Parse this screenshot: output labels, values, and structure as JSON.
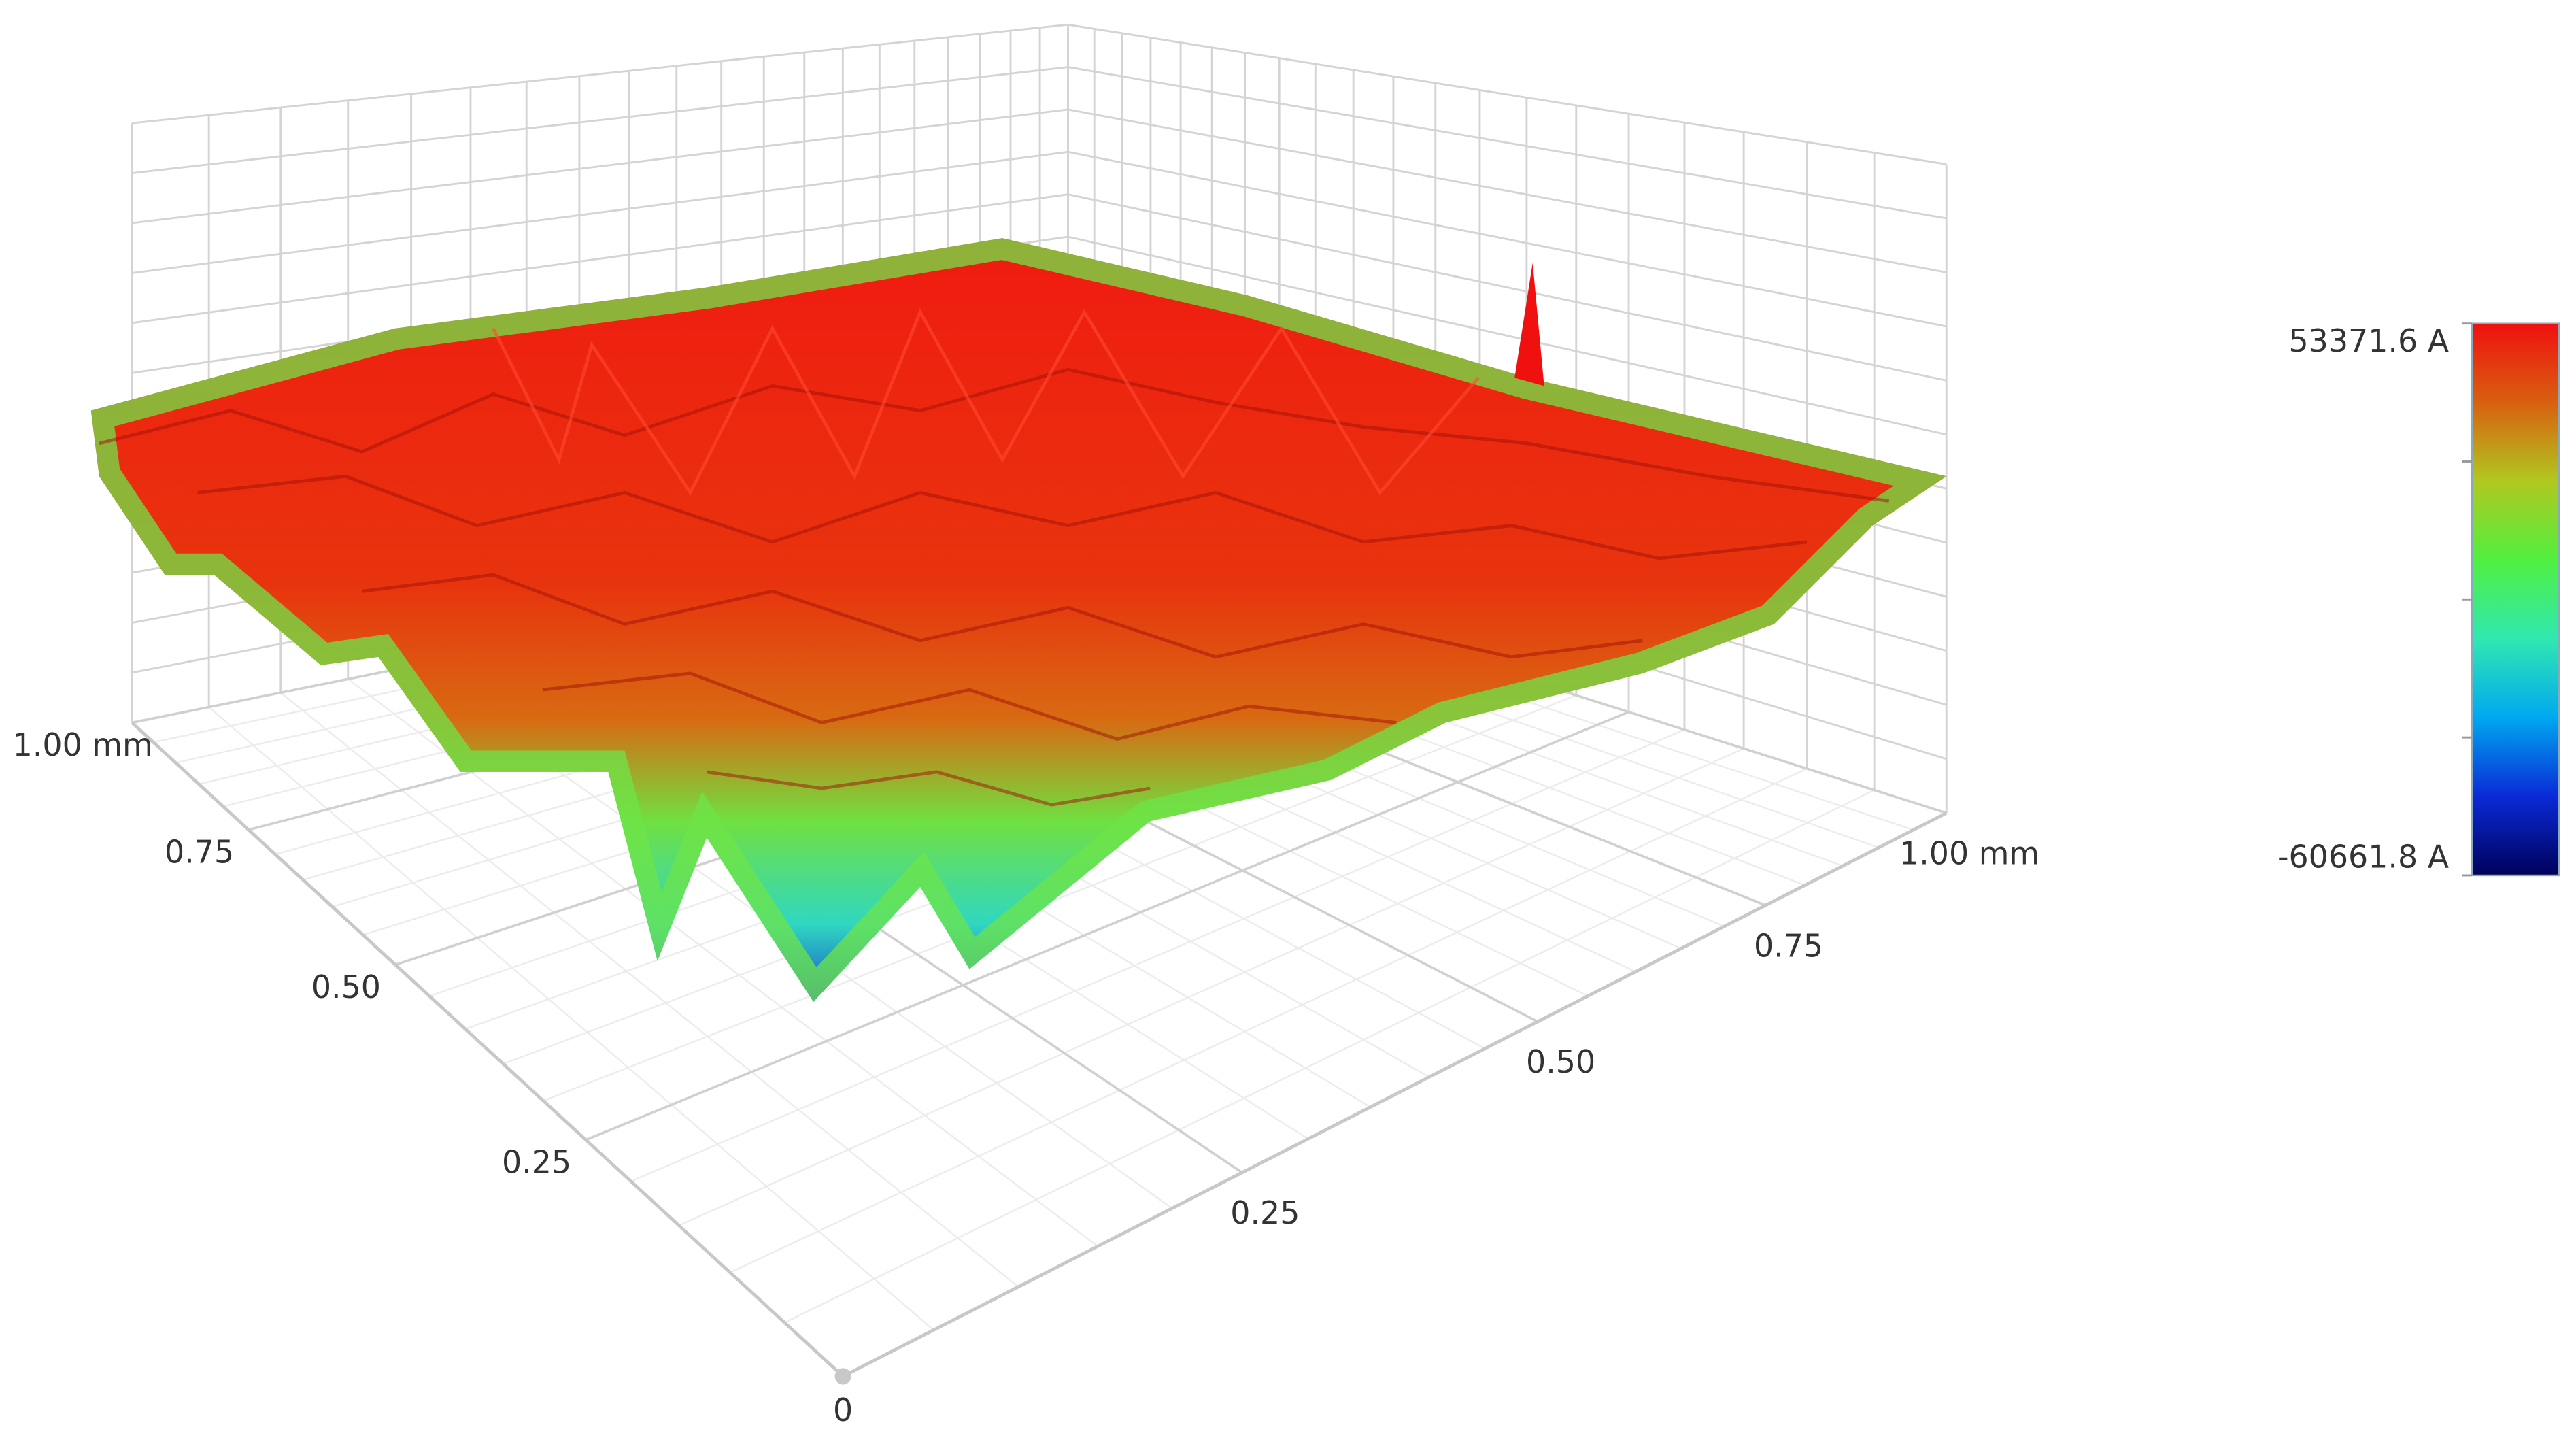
{
  "chart_data": {
    "type": "surface3d",
    "xlim": [
      0,
      1
    ],
    "xticks": [
      0,
      {
        "value": 0.25,
        "label": "0.25"
      },
      {
        "value": 0.5,
        "label": "0.50"
      },
      {
        "value": 0.75,
        "label": "0.75"
      },
      {
        "value": 1,
        "label": "1.00 mm"
      }
    ],
    "ylim": [
      0,
      1
    ],
    "yticks": [
      {
        "value": 0.25,
        "label": "0.25"
      },
      {
        "value": 0.5,
        "label": "0.50"
      },
      {
        "value": 0.75,
        "label": "0.75"
      },
      {
        "value": 1,
        "label": "1.00 mm"
      }
    ],
    "grid": true,
    "colorbar": {
      "clim": [
        -60661.8,
        53371.6
      ],
      "ticks": [
        {
          "value": 53371.6,
          "label": "53371.6 A"
        },
        {
          "value": -60661.8,
          "label": "-60661.8 A"
        }
      ],
      "colormap": [
        "#00005a",
        "#0a2ad8",
        "#00a8f0",
        "#30e8b0",
        "#50f040",
        "#b0c820",
        "#d86010",
        "#f01010"
      ]
    }
  }
}
